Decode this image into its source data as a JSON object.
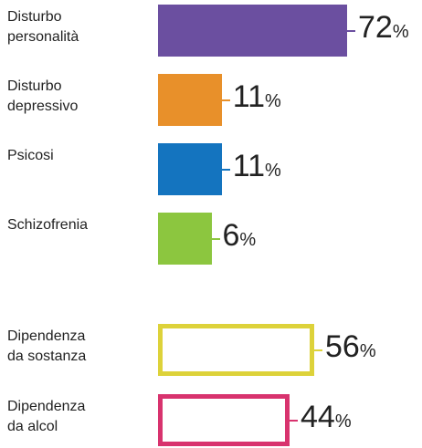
{
  "chart_data": [
    {
      "type": "bar",
      "bar_style": "filled",
      "categories": [
        "Disturbo personalità",
        "Disturbo depressivo",
        "Psicosi",
        "Schizofrenia"
      ],
      "values": [
        72,
        11,
        11,
        6
      ],
      "value_labels": [
        "72%",
        "11%",
        "11%",
        "6%"
      ],
      "colors": [
        "#6b4fa0",
        "#e8902a",
        "#1474bf",
        "#8cc63f"
      ]
    },
    {
      "type": "bar",
      "bar_style": "outline",
      "categories": [
        "Dipendenza da sostanza",
        "Dipendenza da alcol"
      ],
      "values": [
        56,
        44
      ],
      "value_labels": [
        "56%",
        "44%"
      ],
      "colors": [
        "#ddd23a",
        "#d8336e"
      ]
    }
  ]
}
